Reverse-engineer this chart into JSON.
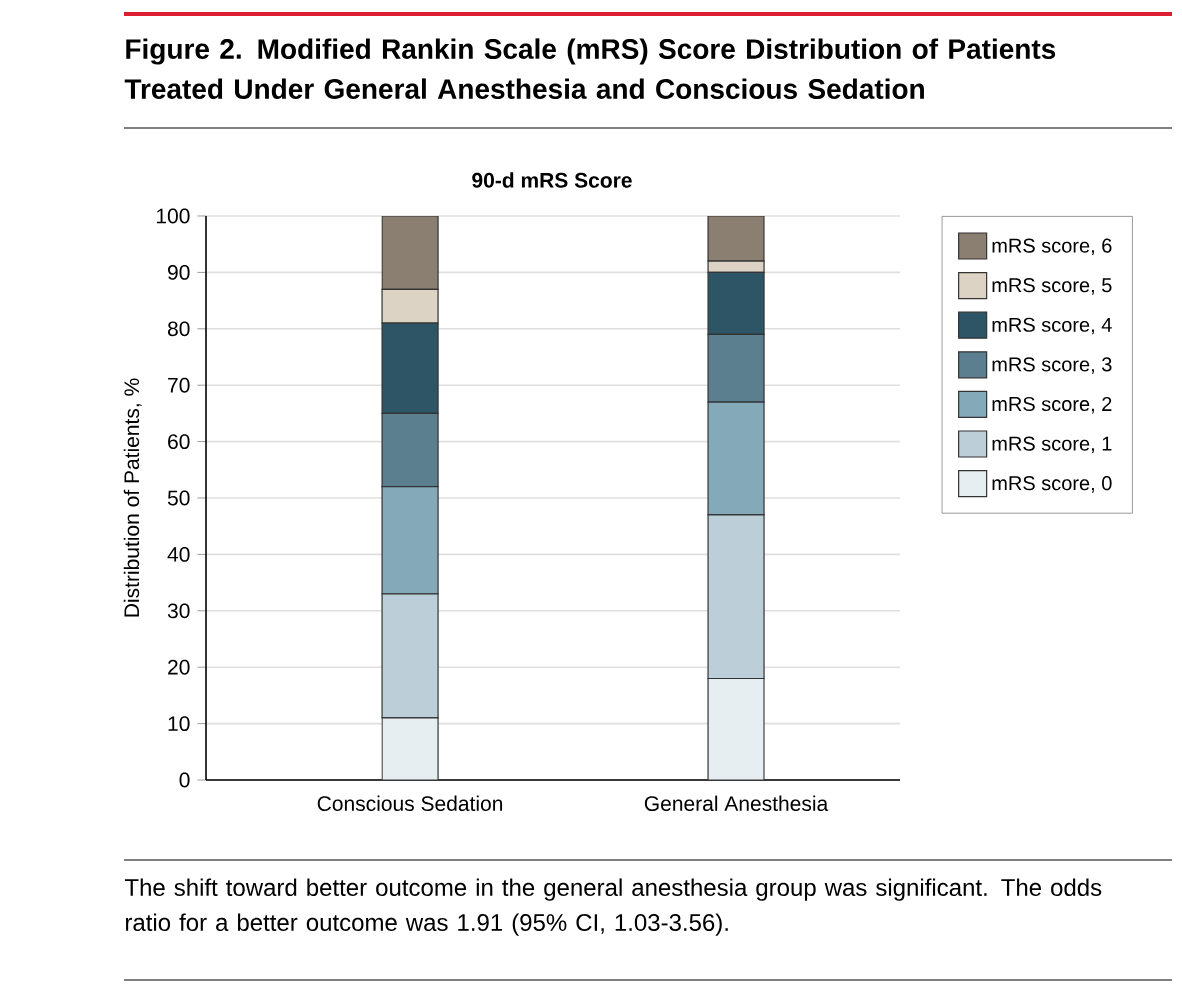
{
  "chart_data": {
    "type": "bar",
    "stacked": true,
    "title": "Figure 2. Modified Rankin Scale (mRS) Score Distribution of Patients Treated Under General Anesthesia and Conscious Sedation",
    "subtitle": "90-d mRS Score",
    "ylabel": "Distribution of Patients, %",
    "categories": [
      "Conscious Sedation",
      "General Anesthesia"
    ],
    "series": [
      {
        "name": "mRS score, 0",
        "color": "#e6eef1",
        "values": [
          11,
          18
        ]
      },
      {
        "name": "mRS score, 1",
        "color": "#bccfd8",
        "values": [
          22,
          29
        ]
      },
      {
        "name": "mRS score, 2",
        "color": "#84a9b8",
        "values": [
          19,
          20
        ]
      },
      {
        "name": "mRS score, 3",
        "color": "#5b7f8e",
        "values": [
          13,
          12
        ]
      },
      {
        "name": "mRS score, 4",
        "color": "#2e5566",
        "values": [
          16,
          11
        ]
      },
      {
        "name": "mRS score, 5",
        "color": "#dcd3c4",
        "values": [
          6,
          2
        ]
      },
      {
        "name": "mRS score, 6",
        "color": "#8a7f70",
        "values": [
          13,
          8
        ]
      }
    ],
    "ylim": [
      0,
      100
    ],
    "yticks": [
      0,
      10,
      20,
      30,
      40,
      50,
      60,
      70,
      80,
      90,
      100
    ],
    "grid": "y",
    "legend": "right",
    "annotations": [
      "The shift toward better outcome in the general anesthesia group was significant. The odds ratio for a better outcome was 1.91 (95% CI, 1.03-3.56)."
    ]
  }
}
